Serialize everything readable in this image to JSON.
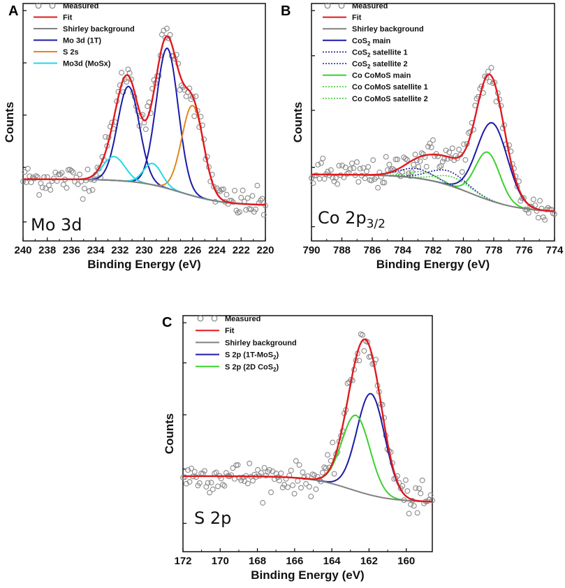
{
  "chart_data": [
    {
      "panel": "A",
      "type": "line",
      "annotation": "Mo 3d",
      "xlabel": "Binding Energy (eV)",
      "ylabel": "Counts",
      "xlim": [
        240,
        220
      ],
      "ylim": [
        0,
        100
      ],
      "x_ticks": [
        "240",
        "238",
        "236",
        "234",
        "232",
        "230",
        "228",
        "226",
        "224",
        "222",
        "220"
      ],
      "x_tick_values": [
        240,
        238,
        236,
        234,
        232,
        230,
        228,
        226,
        224,
        222,
        220
      ],
      "legend": [
        {
          "label": "Measured",
          "style": "circle",
          "color": "#808080"
        },
        {
          "label": "Fit",
          "style": "solid",
          "color": "#e0191e"
        },
        {
          "label": "Shirley background",
          "style": "solid",
          "color": "#808080"
        },
        {
          "label": "Mo 3d (1T)",
          "style": "solid",
          "color": "#1a1aa8"
        },
        {
          "label": "S 2s",
          "style": "solid",
          "color": "#e3861c"
        },
        {
          "label": "Mo3d (MoSx)",
          "style": "solid",
          "color": "#21d9e6"
        }
      ],
      "baseline": {
        "left": 26,
        "right": 15,
        "step_center": 227,
        "step_width": 1.8
      },
      "peaks": [
        {
          "series": "Mo 3d (1T)",
          "center": 228.1,
          "height": 59,
          "sigma": 0.9
        },
        {
          "series": "Mo 3d (1T)",
          "center": 231.3,
          "height": 40,
          "sigma": 0.9
        },
        {
          "series": "S 2s",
          "center": 226.0,
          "height": 38,
          "sigma": 0.9
        },
        {
          "series": "Mo3d (MoSx)",
          "center": 232.5,
          "height": 10,
          "sigma": 0.9
        },
        {
          "series": "Mo3d (MoSx)",
          "center": 229.3,
          "height": 9,
          "sigma": 0.75
        }
      ]
    },
    {
      "panel": "B",
      "type": "line",
      "annotation": "Co 2p",
      "annotation_sub": "3/2",
      "xlabel": "Binding Energy (eV)",
      "ylabel": "Counts",
      "xlim": [
        790,
        774
      ],
      "ylim": [
        0,
        100
      ],
      "x_ticks": [
        "790",
        "788",
        "786",
        "784",
        "782",
        "780",
        "778",
        "776",
        "774"
      ],
      "x_tick_values": [
        790,
        788,
        786,
        784,
        782,
        780,
        778,
        776,
        774
      ],
      "legend": [
        {
          "label": "Measured",
          "style": "circle",
          "color": "#808080"
        },
        {
          "label": "Fit",
          "style": "solid",
          "color": "#e0191e"
        },
        {
          "label": "Shirley background",
          "style": "solid",
          "color": "#808080"
        },
        {
          "label": "CoS",
          "sub": "2",
          "tail": " main",
          "style": "solid",
          "color": "#1a1aa8"
        },
        {
          "label": "CoS",
          "sub": "2",
          "tail": " satellite 1",
          "style": "dotted",
          "color": "#1a1aa8"
        },
        {
          "label": "CoS",
          "sub": "2",
          "tail": " satellite 2",
          "style": "dotted",
          "color": "#1a1aa8"
        },
        {
          "label": "Co CoMoS main",
          "style": "solid",
          "color": "#3ad12e"
        },
        {
          "label": "Co CoMoS satellite 1",
          "style": "dotted",
          "color": "#3ad12e"
        },
        {
          "label": "Co CoMoS satellite 2",
          "style": "dotted",
          "color": "#3ad12e"
        }
      ],
      "baseline": {
        "left": 28,
        "right": 12,
        "step_center": 779.5,
        "step_width": 1.6
      },
      "peaks": [
        {
          "series": "CoS2 main",
          "center": 778.1,
          "height": 33,
          "sigma": 1.0
        },
        {
          "series": "Co CoMoS main",
          "center": 778.4,
          "height": 20,
          "sigma": 0.8
        },
        {
          "series": "CoS2 satellite 1",
          "center": 783.1,
          "height": 4,
          "sigma": 1.1
        },
        {
          "series": "CoS2 satellite 2",
          "center": 781.0,
          "height": 6,
          "sigma": 1.2
        },
        {
          "series": "Co CoMoS satellite 1",
          "center": 782.6,
          "height": 3,
          "sigma": 1.0
        },
        {
          "series": "Co CoMoS satellite 2",
          "center": 780.7,
          "height": 4,
          "sigma": 1.1
        }
      ]
    },
    {
      "panel": "C",
      "type": "line",
      "annotation": "S 2p",
      "xlabel": "Binding Energy (eV)",
      "ylabel": "Counts",
      "xlim": [
        172,
        158.6
      ],
      "ylim": [
        0,
        100
      ],
      "x_ticks": [
        "172",
        "170",
        "168",
        "166",
        "164",
        "162",
        "160"
      ],
      "x_tick_values": [
        172,
        170,
        168,
        166,
        164,
        162,
        160
      ],
      "legend": [
        {
          "label": "Measured",
          "style": "circle",
          "color": "#808080"
        },
        {
          "label": "Fit",
          "style": "solid",
          "color": "#e0191e"
        },
        {
          "label": "Shirley  background",
          "style": "solid",
          "color": "#808080"
        },
        {
          "label": "S 2p (1T-MoS",
          "sub": "2",
          "tail": ")",
          "style": "solid",
          "color": "#1a1aa8"
        },
        {
          "label": "S 2p (2D CoS",
          "sub": "2",
          "tail": ")",
          "style": "solid",
          "color": "#3ad12e"
        }
      ],
      "baseline": {
        "left": 32,
        "right": 21,
        "step_center": 163,
        "step_width": 1.1
      },
      "peaks": [
        {
          "series": "S 2p (1T-MoS2)",
          "center": 161.9,
          "height": 43,
          "sigma": 0.75
        },
        {
          "series": "S 2p (2D CoS2)",
          "center": 162.7,
          "height": 32,
          "sigma": 0.75
        }
      ]
    }
  ]
}
